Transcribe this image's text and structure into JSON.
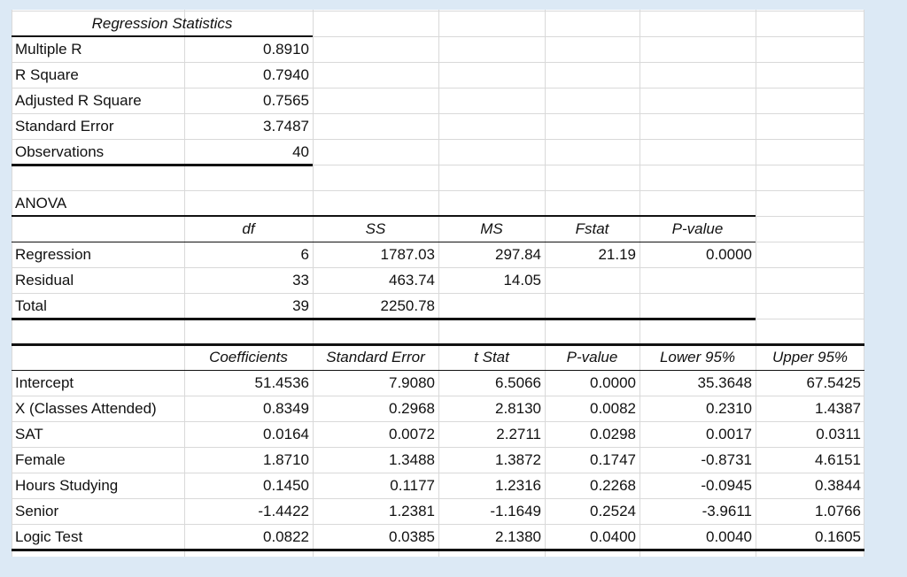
{
  "regression_statistics": {
    "title": "Regression Statistics",
    "rows": [
      {
        "label": "Multiple R",
        "value": "0.8910"
      },
      {
        "label": "R Square",
        "value": "0.7940"
      },
      {
        "label": "Adjusted R Square",
        "value": "0.7565"
      },
      {
        "label": "Standard Error",
        "value": "3.7487"
      },
      {
        "label": "Observations",
        "value": "40"
      }
    ]
  },
  "anova": {
    "title": "ANOVA",
    "headers": [
      "df",
      "SS",
      "MS",
      "Fstat",
      "P-value"
    ],
    "rows": [
      {
        "label": "Regression",
        "values": [
          "6",
          "1787.03",
          "297.84",
          "21.19",
          "0.0000"
        ]
      },
      {
        "label": "Residual",
        "values": [
          "33",
          "463.74",
          "14.05",
          "",
          ""
        ]
      },
      {
        "label": "Total",
        "values": [
          "39",
          "2250.78",
          "",
          "",
          ""
        ]
      }
    ]
  },
  "coefficients": {
    "headers": [
      "Coefficients",
      "Standard Error",
      "t Stat",
      "P-value",
      "Lower 95%",
      "Upper 95%"
    ],
    "rows": [
      {
        "label": "Intercept",
        "values": [
          "51.4536",
          "7.9080",
          "6.5066",
          "0.0000",
          "35.3648",
          "67.5425"
        ]
      },
      {
        "label": "X (Classes Attended)",
        "values": [
          "0.8349",
          "0.2968",
          "2.8130",
          "0.0082",
          "0.2310",
          "1.4387"
        ]
      },
      {
        "label": "SAT",
        "values": [
          "0.0164",
          "0.0072",
          "2.2711",
          "0.0298",
          "0.0017",
          "0.0311"
        ]
      },
      {
        "label": "Female",
        "values": [
          "1.8710",
          "1.3488",
          "1.3872",
          "0.1747",
          "-0.8731",
          "4.6151"
        ]
      },
      {
        "label": "Hours Studying",
        "values": [
          "0.1450",
          "0.1177",
          "1.2316",
          "0.2268",
          "-0.0945",
          "0.3844"
        ]
      },
      {
        "label": "Senior",
        "values": [
          "-1.4422",
          "1.2381",
          "-1.1649",
          "0.2524",
          "-3.9611",
          "1.0766"
        ]
      },
      {
        "label": "Logic Test",
        "values": [
          "0.0822",
          "0.0385",
          "2.1380",
          "0.0400",
          "0.0040",
          "0.1605"
        ]
      }
    ]
  }
}
